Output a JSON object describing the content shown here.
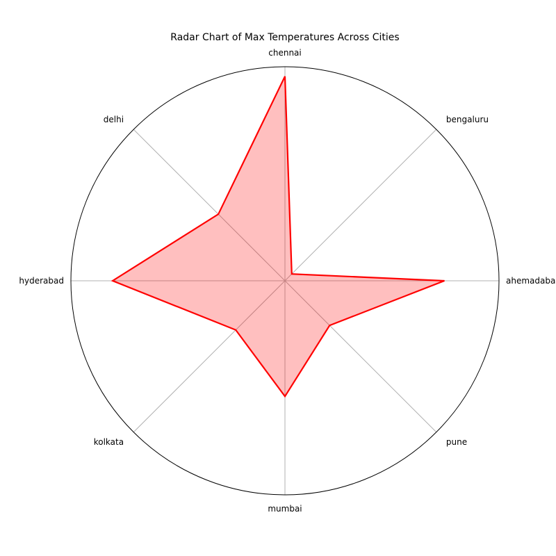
{
  "chart_data": {
    "type": "radar",
    "title": "Radar Chart of Max Temperatures Across Cities",
    "categories": [
      "ahemadabad",
      "bengaluru",
      "chennai",
      "delhi",
      "hyderabad",
      "kolkata",
      "mumbai",
      "pune"
    ],
    "series": [
      {
        "values": [
          0.745,
          0.045,
          0.955,
          0.44,
          0.805,
          0.325,
          0.54,
          0.295
        ]
      }
    ],
    "rlim": [
      0,
      1
    ],
    "grid": true,
    "radial_tick_labels": false,
    "colors": {
      "line": "#ff0000",
      "fill": "#ff0000",
      "fill_opacity": 0.25
    }
  }
}
